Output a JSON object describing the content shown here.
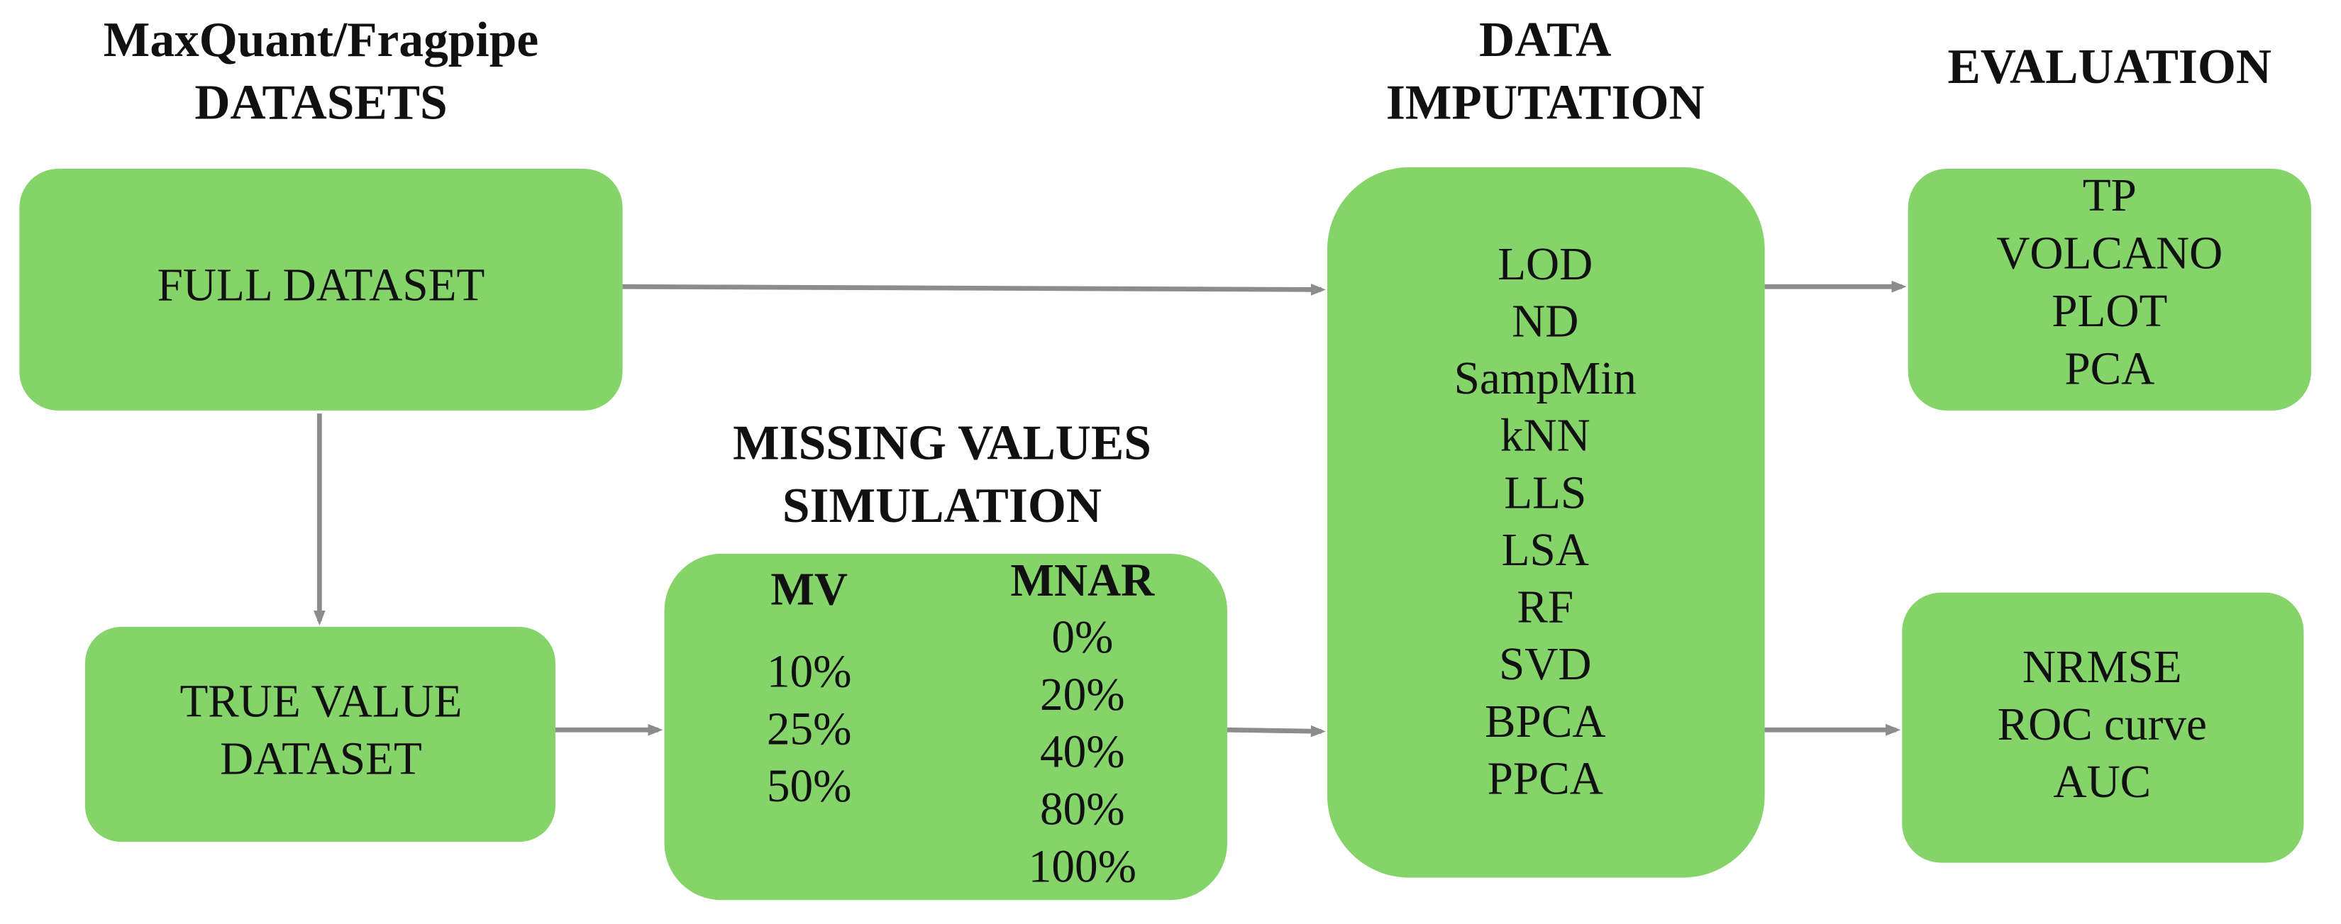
{
  "headings": [
    {
      "lines": [
        "MaxQuant/Fragpipe",
        "DATASETS"
      ]
    },
    {
      "lines": [
        "MISSING VALUES",
        "SIMULATION"
      ]
    },
    {
      "lines": [
        "DATA",
        "IMPUTATION"
      ]
    },
    {
      "lines": [
        "EVALUATION"
      ]
    }
  ],
  "nodes": [
    {
      "lines": [
        "FULL DATASET"
      ]
    },
    {
      "lines": [
        "TRUE VALUE",
        "DATASET"
      ]
    },
    {
      "columns": [
        {
          "header": "MV",
          "values": [
            "10%",
            "25%",
            "50%"
          ]
        },
        {
          "header": "MNAR",
          "values": [
            "0%",
            "20%",
            "40%",
            "80%",
            "100%"
          ]
        }
      ]
    },
    {
      "lines": [
        "LOD",
        "ND",
        "SampMin",
        "kNN",
        "LLS",
        "LSA",
        "RF",
        "SVD",
        "BPCA",
        "PPCA"
      ]
    },
    {
      "lines": [
        "TP",
        "VOLCANO",
        "PLOT",
        "PCA"
      ]
    },
    {
      "lines": [
        "NRMSE",
        "ROC curve",
        "AUC"
      ]
    }
  ]
}
